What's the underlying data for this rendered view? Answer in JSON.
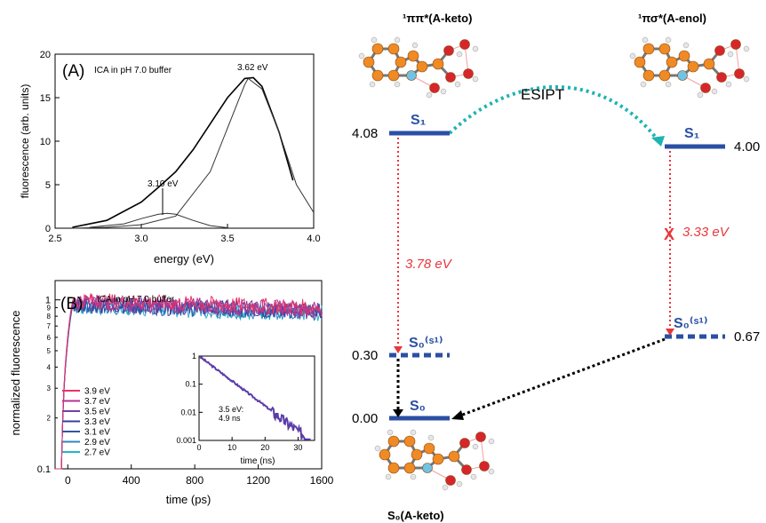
{
  "colors": {
    "level_blue": "#2a4fa3",
    "arrow_red": "#e8363b",
    "esipt_teal": "#1fb3b3",
    "molecule_orange": "#f08a24",
    "molecule_red": "#d7262b",
    "molecule_cyan": "#6fc3e6",
    "molecule_white": "#e6e6e6"
  },
  "panelA": {
    "label": "(A)",
    "title": "ICA in pH 7.0 buffer",
    "ylabel": "fluorescence (arb. units)",
    "xlabel": "energy (eV)",
    "peak_high_label": "3.62 eV",
    "peak_low_label": "3.10 eV"
  },
  "panelB": {
    "label": "(B)",
    "title": "ICA in pH 7.0 buffer",
    "ylabel": "normalized fluorescence",
    "xlabel": "time (ps)",
    "inset_xlabel": "time (ns)",
    "inset_annotation_1": "3.5 eV:",
    "inset_annotation_2": "4.9 ns"
  },
  "diagram": {
    "state_left_top": "¹ππ*(A-keto)",
    "state_right_top": "¹πσ*(A-enol)",
    "esipt": "ESIPT",
    "s1_left": "S₁",
    "s1_right": "S₁",
    "s0s1_left": "S₀⁽ˢ¹⁾",
    "s0s1_right": "S₀⁽ˢ¹⁾",
    "s0": "S₀",
    "energy_left_top": "4.08",
    "energy_right_top": "4.00",
    "energy_left_mid": "0.30",
    "energy_right_mid": "0.67",
    "energy_ground": "0.00",
    "transition_left": "3.78 eV",
    "transition_right": "3.33 eV",
    "forbidden_mark": "X",
    "state_bottom": "S₀(A-keto)"
  },
  "chart_data": [
    {
      "type": "line",
      "xlabel": "energy (eV)",
      "ylabel": "fluorescence (arb. units)",
      "xlim": [
        2.5,
        4.0
      ],
      "ylim": [
        0,
        20
      ],
      "x_ticks": [
        2.5,
        3.0,
        3.5,
        4.0
      ],
      "y_ticks": [
        0,
        5,
        10,
        15,
        20
      ],
      "annotations": [
        "3.62 eV",
        "3.10 eV"
      ],
      "series": [
        {
          "x": [
            2.6,
            2.8,
            3.0,
            3.1,
            3.2,
            3.3,
            3.4,
            3.5,
            3.6,
            3.65,
            3.7,
            3.8,
            3.88
          ],
          "values": [
            0.1,
            0.9,
            3.0,
            4.7,
            6.5,
            9.0,
            12.0,
            15.0,
            17.2,
            17.3,
            16.3,
            11.0,
            5.5
          ]
        },
        {
          "x": [
            2.6,
            2.8,
            3.0,
            3.2,
            3.4,
            3.5,
            3.6,
            3.62,
            3.7,
            3.8,
            3.9,
            4.0
          ],
          "values": [
            0.0,
            0.1,
            0.4,
            1.4,
            6.5,
            11.5,
            16.5,
            17.2,
            16.0,
            11.0,
            5.0,
            1.8
          ]
        },
        {
          "x": [
            2.7,
            2.9,
            3.0,
            3.1,
            3.15,
            3.2,
            3.3,
            3.4,
            3.5
          ],
          "values": [
            0.1,
            0.5,
            1.1,
            1.6,
            1.7,
            1.6,
            0.9,
            0.3,
            0.05
          ]
        }
      ]
    },
    {
      "type": "line",
      "xlabel": "time (ps)",
      "ylabel": "normalized fluorescence",
      "xlim": [
        -80,
        1600
      ],
      "ylim": [
        0.1,
        1.3
      ],
      "yscale": "log",
      "x_ticks": [
        0,
        400,
        800,
        1200,
        1600
      ],
      "y_ticks": [
        0.1,
        1
      ],
      "y_minor_labels": [
        "2",
        "3",
        "4",
        "5",
        "6",
        "7",
        "8",
        "9"
      ],
      "series": [
        {
          "name": "3.9 eV",
          "color": "#e8336b",
          "plateau": 1.0
        },
        {
          "name": "3.7 eV",
          "color": "#b9338c",
          "plateau": 0.98
        },
        {
          "name": "3.5 eV",
          "color": "#7a3fa0",
          "plateau": 0.96
        },
        {
          "name": "3.3 eV",
          "color": "#3a3f9e",
          "plateau": 0.95
        },
        {
          "name": "3.1 eV",
          "color": "#2f55a8",
          "plateau": 0.94
        },
        {
          "name": "2.9 eV",
          "color": "#2f86c0",
          "plateau": 0.93
        },
        {
          "name": "2.7 eV",
          "color": "#22b5c9",
          "plateau": 0.92
        }
      ]
    },
    {
      "type": "line",
      "xlabel": "time (ns)",
      "xlim": [
        0,
        35
      ],
      "ylim": [
        0.001,
        1
      ],
      "yscale": "log",
      "x_ticks": [
        0,
        10,
        20,
        30
      ],
      "y_ticks": [
        0.001,
        0.01,
        0.1,
        1
      ],
      "annotations": [
        "3.5 eV:",
        "4.9 ns"
      ],
      "series": [
        {
          "lifetime_ns": 4.9,
          "color": "#5b3da8"
        }
      ]
    }
  ]
}
